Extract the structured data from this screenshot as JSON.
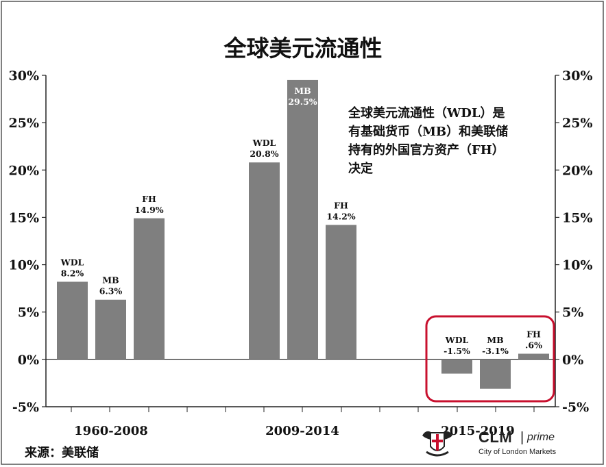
{
  "chart_data": {
    "type": "bar",
    "title": "全球美元流通性",
    "ylim": [
      -5,
      30
    ],
    "ytick_labels": [
      "-5%",
      "0%",
      "5%",
      "10%",
      "15%",
      "20%",
      "25%",
      "30%"
    ],
    "groups": [
      {
        "label": "1960-2008",
        "bars": [
          {
            "name": "WDL",
            "value": 8.2,
            "label": "8.2%"
          },
          {
            "name": "MB",
            "value": 6.3,
            "label": "6.3%"
          },
          {
            "name": "FH",
            "value": 14.9,
            "label": "14.9%"
          }
        ]
      },
      {
        "label": "2009-2014",
        "bars": [
          {
            "name": "WDL",
            "value": 20.8,
            "label": "20.8%"
          },
          {
            "name": "MB",
            "value": 29.5,
            "label": "29.5%"
          },
          {
            "name": "FH",
            "value": 14.2,
            "label": "14.2%"
          }
        ]
      },
      {
        "label": "2015-2019",
        "bars": [
          {
            "name": "WDL",
            "value": -1.5,
            "label": "-1.5%"
          },
          {
            "name": "MB",
            "value": -3.1,
            "label": "-3.1%"
          },
          {
            "name": "FH",
            "value": 0.6,
            "label": ".6%"
          }
        ]
      }
    ],
    "annotation": [
      "全球美元流通性（WDL）是",
      "有基础货币（MB）和美联储",
      "持有的外国官方资产（FH）",
      "决定"
    ],
    "highlight_group": "2015-2019",
    "bar_color": "#7f7f7f",
    "highlight_color": "#c8102e",
    "grid": false,
    "legend": "none"
  },
  "source": "来源：美联储",
  "logo": {
    "brand": "CLM",
    "separator": "|",
    "tagline": "prime",
    "subtitle": "City of London Markets"
  }
}
